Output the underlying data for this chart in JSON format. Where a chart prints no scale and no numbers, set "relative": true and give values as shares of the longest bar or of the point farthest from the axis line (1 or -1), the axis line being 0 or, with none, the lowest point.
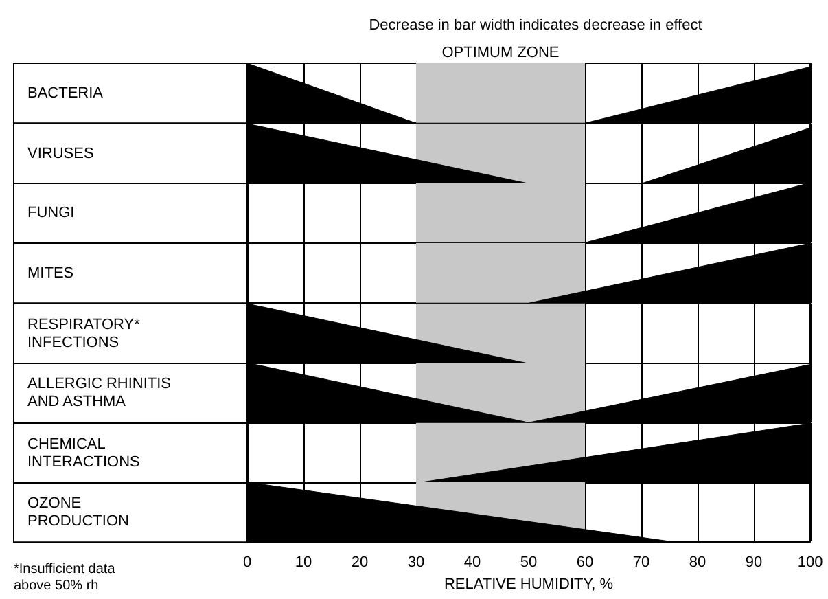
{
  "chart_data": [
    {
      "type": "area",
      "title": "Decrease in bar width indicates decrease in effect",
      "ylabel": "BACTERIA",
      "relative": true,
      "x": [
        0,
        30,
        60,
        100
      ],
      "values": [
        1,
        0,
        0,
        0.94
      ],
      "color": "#000000",
      "xlim": [
        0,
        100
      ],
      "xticks": [
        0,
        10,
        20,
        30,
        40,
        50,
        60,
        70,
        80,
        90,
        100
      ],
      "grid": "x",
      "tick_labels": false,
      "bands": [
        {
          "axis": "x",
          "from": 30,
          "to": 60,
          "label": "OPTIMUM ZONE",
          "color": "#c8c8c8"
        }
      ]
    },
    {
      "type": "area",
      "ylabel": "VIRUSES",
      "relative": true,
      "x": [
        0,
        50,
        70,
        100
      ],
      "values": [
        1,
        0,
        0,
        0.93
      ],
      "color": "#000000",
      "xlim": [
        0,
        100
      ],
      "xticks": [
        0,
        10,
        20,
        30,
        40,
        50,
        60,
        70,
        80,
        90,
        100
      ],
      "grid": "x",
      "tick_labels": false,
      "bands": [
        {
          "axis": "x",
          "from": 30,
          "to": 60,
          "color": "#c8c8c8"
        }
      ]
    },
    {
      "type": "area",
      "ylabel": "FUNGI",
      "relative": true,
      "x": [
        0,
        60,
        100
      ],
      "values": [
        0,
        0,
        1
      ],
      "color": "#000000",
      "xlim": [
        0,
        100
      ],
      "xticks": [
        0,
        10,
        20,
        30,
        40,
        50,
        60,
        70,
        80,
        90,
        100
      ],
      "grid": "x",
      "tick_labels": false,
      "bands": [
        {
          "axis": "x",
          "from": 30,
          "to": 60,
          "color": "#c8c8c8"
        }
      ]
    },
    {
      "type": "area",
      "ylabel": "MITES",
      "relative": true,
      "x": [
        0,
        50,
        100
      ],
      "values": [
        0,
        0,
        1
      ],
      "color": "#000000",
      "xlim": [
        0,
        100
      ],
      "xticks": [
        0,
        10,
        20,
        30,
        40,
        50,
        60,
        70,
        80,
        90,
        100
      ],
      "grid": "x",
      "tick_labels": false,
      "bands": [
        {
          "axis": "x",
          "from": 30,
          "to": 60,
          "color": "#c8c8c8"
        }
      ]
    },
    {
      "type": "area",
      "ylabel": "RESPIRATORY* INFECTIONS",
      "relative": true,
      "x": [
        0,
        50,
        100
      ],
      "values": [
        1,
        0,
        0
      ],
      "color": "#000000",
      "xlim": [
        0,
        100
      ],
      "xticks": [
        0,
        10,
        20,
        30,
        40,
        50,
        60,
        70,
        80,
        90,
        100
      ],
      "grid": "x",
      "tick_labels": false,
      "bands": [
        {
          "axis": "x",
          "from": 30,
          "to": 60,
          "color": "#c8c8c8"
        }
      ]
    },
    {
      "type": "area",
      "ylabel": "ALLERGIC RHINITIS AND ASTHMA",
      "relative": true,
      "x": [
        0,
        50,
        100
      ],
      "values": [
        1,
        0,
        0.97
      ],
      "color": "#000000",
      "xlim": [
        0,
        100
      ],
      "xticks": [
        0,
        10,
        20,
        30,
        40,
        50,
        60,
        70,
        80,
        90,
        100
      ],
      "grid": "x",
      "tick_labels": false,
      "bands": [
        {
          "axis": "x",
          "from": 30,
          "to": 60,
          "color": "#c8c8c8"
        }
      ]
    },
    {
      "type": "area",
      "ylabel": "CHEMICAL INTERACTIONS",
      "relative": true,
      "x": [
        0,
        30,
        100
      ],
      "values": [
        0,
        0,
        1
      ],
      "color": "#000000",
      "xlim": [
        0,
        100
      ],
      "xticks": [
        0,
        10,
        20,
        30,
        40,
        50,
        60,
        70,
        80,
        90,
        100
      ],
      "grid": "x",
      "tick_labels": false,
      "bands": [
        {
          "axis": "x",
          "from": 30,
          "to": 60,
          "color": "#c8c8c8"
        }
      ]
    },
    {
      "type": "area",
      "ylabel": "OZONE PRODUCTION",
      "xlabel": "RELATIVE HUMIDITY, %",
      "relative": true,
      "x": [
        0,
        75,
        100
      ],
      "values": [
        1,
        0,
        0
      ],
      "color": "#000000",
      "xlim": [
        0,
        100
      ],
      "xticks": [
        0,
        10,
        20,
        30,
        40,
        50,
        60,
        70,
        80,
        90,
        100
      ],
      "grid": "x",
      "tick_labels": "x",
      "bands": [
        {
          "axis": "x",
          "from": 30,
          "to": 60,
          "color": "#c8c8c8"
        }
      ],
      "annotations": [
        "*Insufficient data above 50% rh"
      ]
    }
  ]
}
